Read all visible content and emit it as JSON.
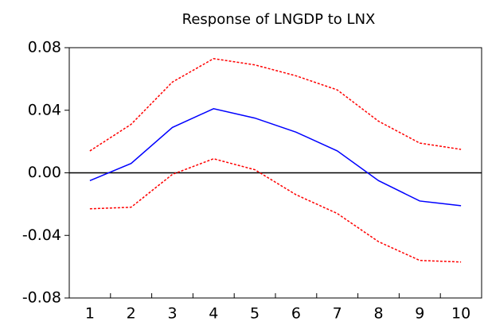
{
  "chart_data": {
    "type": "line",
    "title": "Response of LNGDP to LNX",
    "categories": [
      "1",
      "2",
      "3",
      "4",
      "5",
      "6",
      "7",
      "8",
      "9",
      "10"
    ],
    "series": [
      {
        "color": "#ff0000",
        "style": "dashed",
        "values": [
          0.014,
          0.031,
          0.058,
          0.073,
          0.069,
          0.062,
          0.053,
          0.033,
          0.019,
          0.015
        ]
      },
      {
        "color": "#0000ff",
        "style": "solid",
        "values": [
          -0.005,
          0.006,
          0.029,
          0.041,
          0.035,
          0.026,
          0.014,
          -0.005,
          -0.018,
          -0.021
        ]
      },
      {
        "color": "#ff0000",
        "style": "dashed",
        "values": [
          -0.023,
          -0.022,
          -0.001,
          0.009,
          0.002,
          -0.014,
          -0.026,
          -0.044,
          -0.056,
          -0.057
        ]
      }
    ],
    "ylim": [
      -0.08,
      0.08
    ],
    "yticks": [
      0.08,
      0.04,
      {
        "value": 0,
        "label": "0.00"
      },
      -0.04,
      -0.08
    ],
    "zero_line": true
  }
}
